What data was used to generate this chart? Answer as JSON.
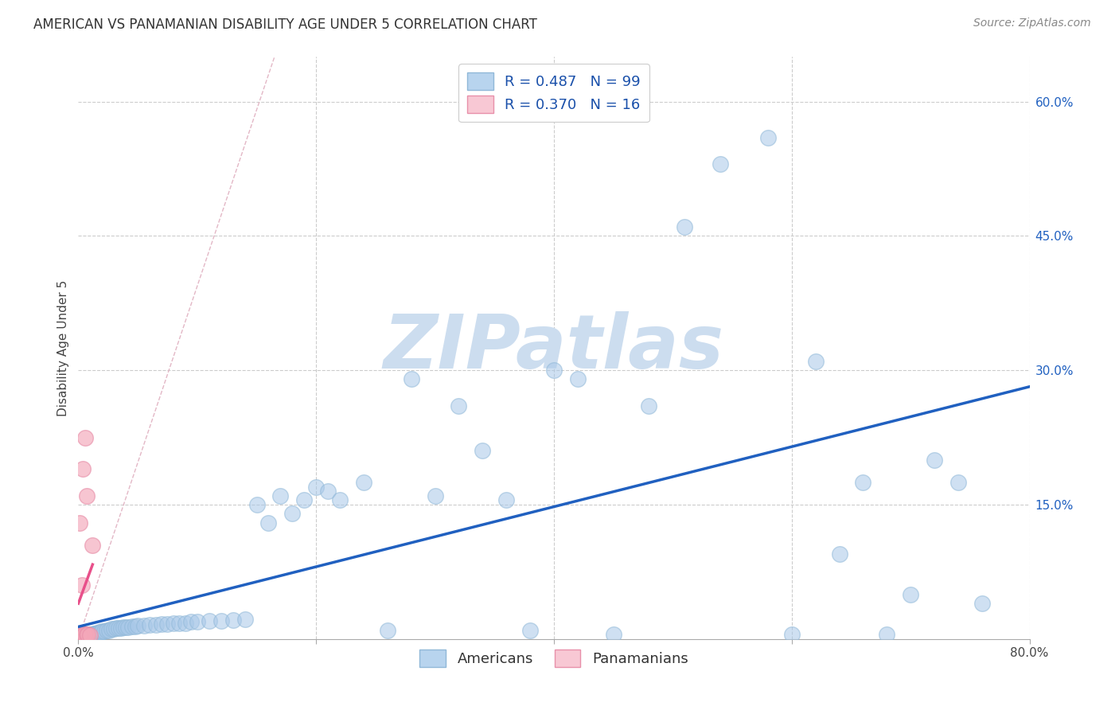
{
  "title": "AMERICAN VS PANAMANIAN DISABILITY AGE UNDER 5 CORRELATION CHART",
  "source": "Source: ZipAtlas.com",
  "ylabel": "Disability Age Under 5",
  "xlim": [
    0,
    0.8
  ],
  "ylim": [
    0,
    0.65
  ],
  "american_R": 0.487,
  "american_N": 99,
  "panamanian_R": 0.37,
  "panamanian_N": 16,
  "american_color": "#A8C8E8",
  "panamanian_color": "#F4A7B9",
  "american_line_color": "#2060C0",
  "panamanian_line_color": "#E8508A",
  "diagonal_color": "#E0B0C0",
  "background_color": "#FFFFFF",
  "grid_color": "#CCCCCC",
  "watermark": "ZIPatlas",
  "watermark_color": "#CCDDEF",
  "legend_american_color": "#B8D4EE",
  "legend_panamanian_color": "#F8C8D4",
  "title_fontsize": 12,
  "source_fontsize": 10,
  "axis_label_fontsize": 11,
  "tick_fontsize": 11,
  "legend_fontsize": 13,
  "americans_x": [
    0.001,
    0.001,
    0.002,
    0.002,
    0.002,
    0.003,
    0.003,
    0.003,
    0.004,
    0.004,
    0.004,
    0.005,
    0.005,
    0.005,
    0.006,
    0.006,
    0.006,
    0.007,
    0.007,
    0.007,
    0.008,
    0.008,
    0.009,
    0.009,
    0.01,
    0.01,
    0.011,
    0.011,
    0.012,
    0.012,
    0.013,
    0.013,
    0.014,
    0.015,
    0.016,
    0.017,
    0.018,
    0.019,
    0.02,
    0.022,
    0.024,
    0.026,
    0.028,
    0.03,
    0.032,
    0.034,
    0.036,
    0.038,
    0.04,
    0.042,
    0.045,
    0.048,
    0.05,
    0.055,
    0.06,
    0.065,
    0.07,
    0.075,
    0.08,
    0.085,
    0.09,
    0.095,
    0.1,
    0.11,
    0.12,
    0.13,
    0.14,
    0.15,
    0.16,
    0.17,
    0.18,
    0.19,
    0.2,
    0.21,
    0.22,
    0.24,
    0.26,
    0.28,
    0.3,
    0.32,
    0.34,
    0.36,
    0.38,
    0.4,
    0.42,
    0.45,
    0.48,
    0.51,
    0.54,
    0.58,
    0.62,
    0.66,
    0.7,
    0.74,
    0.76,
    0.72,
    0.68,
    0.64,
    0.6
  ],
  "americans_y": [
    0.003,
    0.004,
    0.003,
    0.004,
    0.005,
    0.003,
    0.004,
    0.005,
    0.003,
    0.004,
    0.005,
    0.003,
    0.004,
    0.005,
    0.003,
    0.004,
    0.005,
    0.003,
    0.004,
    0.005,
    0.004,
    0.005,
    0.004,
    0.005,
    0.004,
    0.005,
    0.004,
    0.005,
    0.004,
    0.005,
    0.005,
    0.006,
    0.006,
    0.006,
    0.007,
    0.007,
    0.008,
    0.008,
    0.009,
    0.009,
    0.01,
    0.01,
    0.011,
    0.011,
    0.012,
    0.012,
    0.012,
    0.013,
    0.013,
    0.013,
    0.014,
    0.014,
    0.015,
    0.015,
    0.016,
    0.016,
    0.017,
    0.017,
    0.018,
    0.018,
    0.018,
    0.019,
    0.019,
    0.02,
    0.02,
    0.021,
    0.022,
    0.15,
    0.13,
    0.16,
    0.14,
    0.155,
    0.17,
    0.165,
    0.155,
    0.175,
    0.01,
    0.29,
    0.16,
    0.26,
    0.21,
    0.155,
    0.01,
    0.3,
    0.29,
    0.005,
    0.26,
    0.46,
    0.53,
    0.56,
    0.31,
    0.175,
    0.05,
    0.175,
    0.04,
    0.2,
    0.005,
    0.095,
    0.005
  ],
  "panamanians_x": [
    0.001,
    0.001,
    0.001,
    0.002,
    0.002,
    0.003,
    0.003,
    0.004,
    0.005,
    0.005,
    0.006,
    0.007,
    0.007,
    0.008,
    0.01,
    0.012
  ],
  "panamanians_y": [
    0.003,
    0.13,
    0.005,
    0.004,
    0.003,
    0.06,
    0.005,
    0.19,
    0.005,
    0.005,
    0.225,
    0.005,
    0.16,
    0.005,
    0.004,
    0.105
  ]
}
